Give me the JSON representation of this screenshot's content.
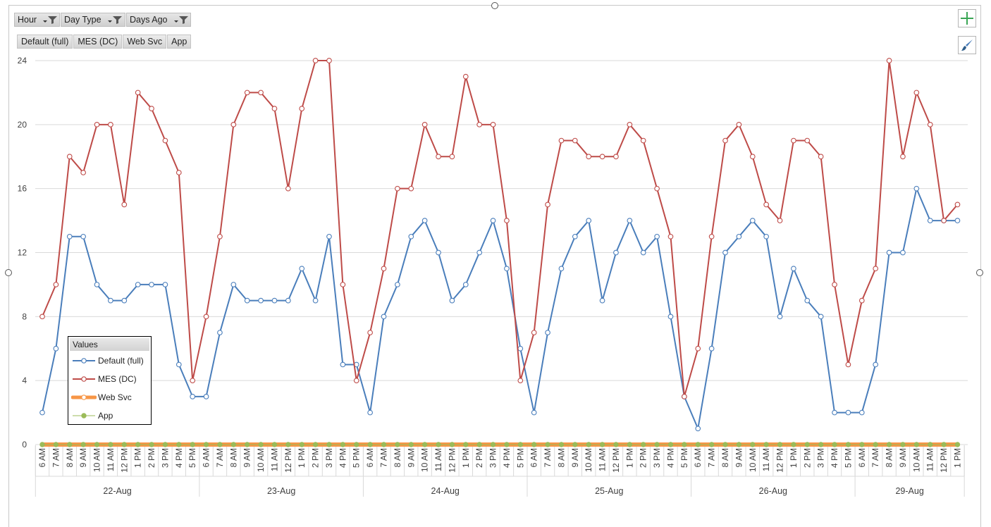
{
  "filters": [
    {
      "label": "Hour"
    },
    {
      "label": "Day Type"
    },
    {
      "label": "Days Ago"
    }
  ],
  "legend_buttons": [
    "Default (full)",
    "MES (DC)",
    "Web Svc",
    "App"
  ],
  "side_buttons": {
    "chart_elements": "plus-icon",
    "chart_styles": "brush-icon"
  },
  "legend": {
    "title": "Values",
    "items": [
      {
        "label": "Default (full)",
        "color": "#4a7ebb"
      },
      {
        "label": "MES (DC)",
        "color": "#be4b48"
      },
      {
        "label": "Web Svc",
        "color": "#f79646"
      },
      {
        "label": "App",
        "color": "#9bbb59"
      }
    ]
  },
  "chart_data": {
    "type": "line",
    "ylim": [
      0,
      24
    ],
    "yticks": [
      0,
      4,
      8,
      12,
      16,
      20,
      24
    ],
    "grid": true,
    "hour_labels": [
      "6 AM",
      "7 AM",
      "8 AM",
      "9 AM",
      "10 AM",
      "11 AM",
      "12 PM",
      "1 PM",
      "2 PM",
      "3 PM",
      "4 PM",
      "5 PM",
      "6 AM",
      "7 AM",
      "8 AM",
      "9 AM",
      "10 AM",
      "11 AM",
      "12 PM",
      "1 PM",
      "2 PM",
      "3 PM",
      "4 PM",
      "5 PM",
      "6 AM",
      "7 AM",
      "8 AM",
      "9 AM",
      "10 AM",
      "11 AM",
      "12 PM",
      "1 PM",
      "2 PM",
      "3 PM",
      "4 PM",
      "5 PM",
      "6 AM",
      "7 AM",
      "8 AM",
      "9 AM",
      "10 AM",
      "11 AM",
      "12 PM",
      "1 PM",
      "2 PM",
      "3 PM",
      "4 PM",
      "5 PM",
      "6 AM",
      "7 AM",
      "8 AM",
      "9 AM",
      "10 AM",
      "11 AM",
      "12 PM",
      "1 PM",
      "2 PM",
      "3 PM",
      "4 PM",
      "5 PM",
      "6 AM",
      "7 AM",
      "8 AM",
      "9 AM",
      "10 AM",
      "11 AM",
      "12 PM",
      "1 PM"
    ],
    "day_groups": [
      {
        "label": "22-Aug",
        "count": 12
      },
      {
        "label": "23-Aug",
        "count": 12
      },
      {
        "label": "24-Aug",
        "count": 12
      },
      {
        "label": "25-Aug",
        "count": 12
      },
      {
        "label": "26-Aug",
        "count": 12
      },
      {
        "label": "29-Aug",
        "count": 8
      }
    ],
    "series": [
      {
        "name": "Default (full)",
        "color": "#4a7ebb",
        "values": [
          2,
          6,
          13,
          13,
          10,
          9,
          9,
          10,
          10,
          10,
          5,
          3,
          3,
          7,
          10,
          9,
          9,
          9,
          9,
          11,
          9,
          13,
          5,
          5,
          2,
          8,
          10,
          13,
          14,
          12,
          9,
          10,
          12,
          14,
          11,
          6,
          2,
          7,
          11,
          13,
          14,
          9,
          12,
          14,
          12,
          13,
          8,
          3,
          1,
          6,
          12,
          13,
          14,
          13,
          8,
          11,
          9,
          8,
          2,
          2,
          2,
          5,
          12,
          12,
          16,
          14,
          14,
          14
        ]
      },
      {
        "name": "MES (DC)",
        "color": "#be4b48",
        "values": [
          8,
          10,
          18,
          17,
          20,
          20,
          15,
          22,
          21,
          19,
          17,
          4,
          8,
          13,
          20,
          22,
          22,
          21,
          16,
          21,
          24,
          24,
          10,
          4,
          7,
          11,
          16,
          16,
          20,
          18,
          18,
          23,
          20,
          20,
          14,
          4,
          7,
          15,
          19,
          19,
          18,
          18,
          18,
          20,
          19,
          16,
          13,
          3,
          6,
          13,
          19,
          20,
          18,
          15,
          14,
          19,
          19,
          18,
          10,
          5,
          9,
          11,
          24,
          18,
          22,
          20,
          14,
          15
        ]
      },
      {
        "name": "Web Svc",
        "color": "#f79646",
        "values": [
          0,
          0,
          0,
          0,
          0,
          0,
          0,
          0,
          0,
          0,
          0,
          0,
          0,
          0,
          0,
          0,
          0,
          0,
          0,
          0,
          0,
          0,
          0,
          0,
          0,
          0,
          0,
          0,
          0,
          0,
          0,
          0,
          0,
          0,
          0,
          0,
          0,
          0,
          0,
          0,
          0,
          0,
          0,
          0,
          0,
          0,
          0,
          0,
          0,
          0,
          0,
          0,
          0,
          0,
          0,
          0,
          0,
          0,
          0,
          0,
          0,
          0,
          0,
          0,
          0,
          0,
          0,
          0
        ]
      },
      {
        "name": "App",
        "color": "#9bbb59",
        "values": [
          0,
          0,
          0,
          0,
          0,
          0,
          0,
          0,
          0,
          0,
          0,
          0,
          0,
          0,
          0,
          0,
          0,
          0,
          0,
          0,
          0,
          0,
          0,
          0,
          0,
          0,
          0,
          0,
          0,
          0,
          0,
          0,
          0,
          0,
          0,
          0,
          0,
          0,
          0,
          0,
          0,
          0,
          0,
          0,
          0,
          0,
          0,
          0,
          0,
          0,
          0,
          0,
          0,
          0,
          0,
          0,
          0,
          0,
          0,
          0,
          0,
          0,
          0,
          0,
          0,
          0,
          0,
          0
        ]
      }
    ]
  }
}
